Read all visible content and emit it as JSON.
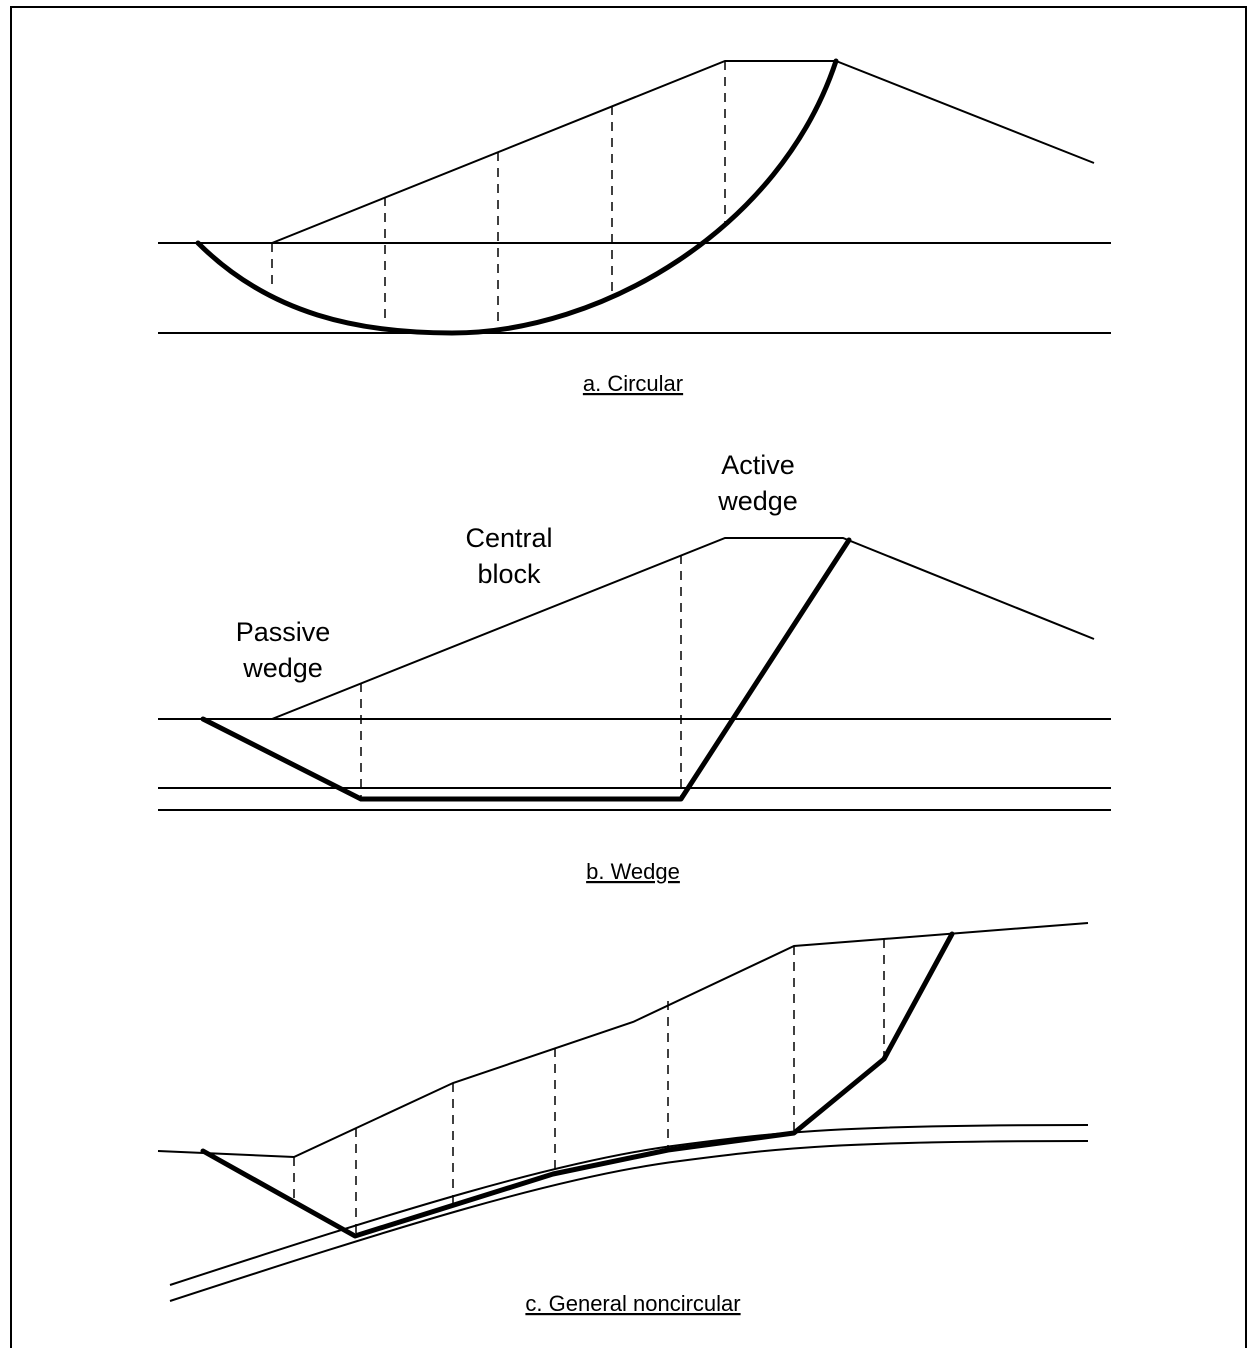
{
  "panels": {
    "circular": {
      "caption": "a. Circular"
    },
    "wedge": {
      "caption": "b. Wedge",
      "labels": {
        "active_line1": "Active",
        "active_line2": "wedge",
        "central_line1": "Central",
        "central_line2": "block",
        "passive_line1": "Passive",
        "passive_line2": "wedge"
      }
    },
    "noncircular": {
      "caption": "c. General noncircular"
    }
  }
}
